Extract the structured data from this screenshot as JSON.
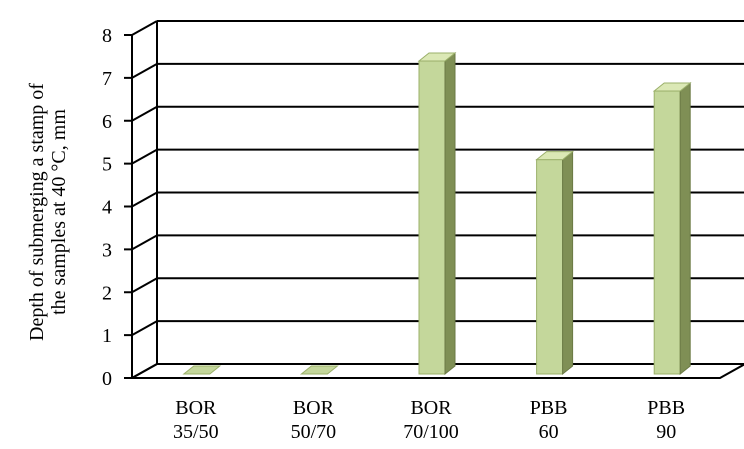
{
  "chart_data": {
    "type": "bar",
    "style": "3d-column",
    "title": "",
    "ylabel_lines": [
      "Depth of submerging a stamp of",
      "the samples at 40 °C, mm"
    ],
    "ylim": [
      0,
      8
    ],
    "yticks": [
      0,
      1,
      2,
      3,
      4,
      5,
      6,
      7,
      8
    ],
    "grid": true,
    "legend": "none",
    "categories": [
      {
        "line1": "BOR",
        "line2": "35/50"
      },
      {
        "line1": "BOR",
        "line2": "50/70"
      },
      {
        "line1": "BOR",
        "line2": "70/100"
      },
      {
        "line1": "PBB",
        "line2": "60"
      },
      {
        "line1": "PBB",
        "line2": "90"
      }
    ],
    "values": [
      0,
      0,
      7.3,
      5.0,
      6.6
    ],
    "colors": {
      "bar_front": "#c4d79b",
      "bar_side": "#7f8f55",
      "bar_top": "#dbe8b5",
      "grid": "#000000",
      "axis": "#000000"
    }
  }
}
